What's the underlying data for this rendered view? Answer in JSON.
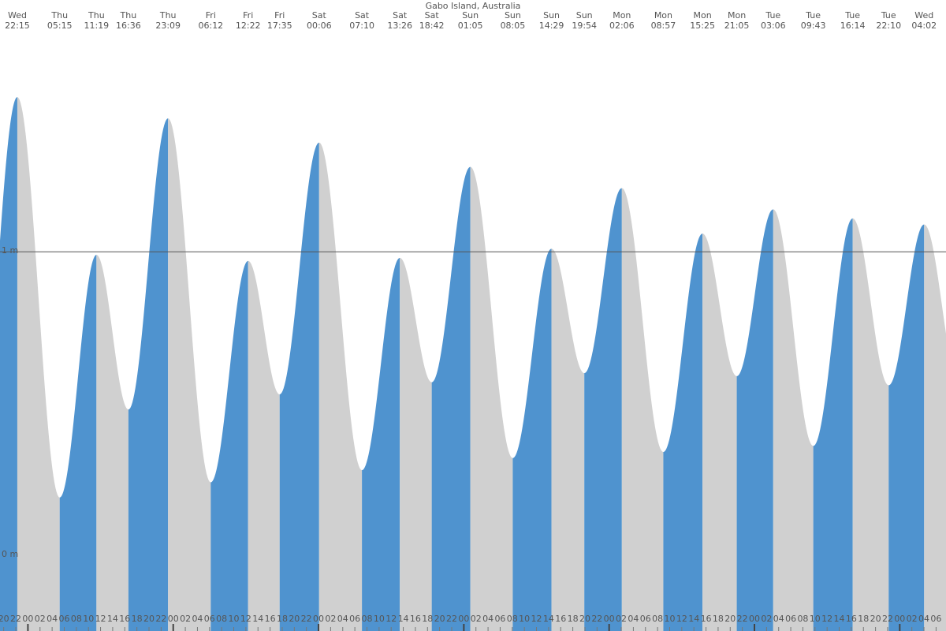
{
  "chart_data": {
    "type": "tide",
    "title": "Gabo Island, Australia",
    "day": [
      "Wed",
      "Thu",
      "Thu",
      "Thu",
      "Thu",
      "Fri",
      "Fri",
      "Fri",
      "Sat",
      "Sat",
      "Sat",
      "Sat",
      "Sun",
      "Sun",
      "Sun",
      "Sun",
      "Mon",
      "Mon",
      "Mon",
      "Mon",
      "Tue",
      "Tue",
      "Tue",
      "Tue",
      "Wed"
    ],
    "time": [
      "22:15",
      "05:15",
      "11:19",
      "16:36",
      "23:09",
      "06:12",
      "12:22",
      "17:35",
      "00:06",
      "07:10",
      "13:26",
      "18:42",
      "01:05",
      "08:05",
      "14:29",
      "19:54",
      "02:06",
      "08:57",
      "15:25",
      "21:05",
      "03:06",
      "09:43",
      "16:14",
      "22:10",
      "04:02"
    ],
    "x": [
      22.25,
      29.25,
      35.32,
      40.6,
      47.15,
      54.2,
      60.37,
      65.58,
      72.1,
      79.17,
      85.43,
      90.7,
      97.08,
      104.08,
      110.48,
      115.9,
      122.1,
      128.95,
      135.42,
      141.08,
      147.1,
      153.72,
      160.23,
      166.17,
      172.03
    ],
    "values": [
      1.51,
      0.19,
      0.99,
      0.48,
      1.44,
      0.24,
      0.97,
      0.53,
      1.36,
      0.28,
      0.98,
      0.57,
      1.28,
      0.32,
      1.01,
      0.6,
      1.21,
      0.34,
      1.06,
      0.59,
      1.14,
      0.36,
      1.11,
      0.56,
      1.09
    ],
    "rising_color": "#4f93cf",
    "falling_color": "#d0d0d0",
    "xlim": [
      19.39,
      175.64
    ],
    "ylim": [
      -0.25,
      1.83
    ],
    "yticks": [
      {
        "value": 0,
        "label": "0 m"
      },
      {
        "value": 1,
        "label": "1 m"
      }
    ],
    "grid": true,
    "xticks": [
      20,
      22,
      {
        "value": 24,
        "label": "00"
      },
      {
        "value": 26,
        "label": "02"
      },
      {
        "value": 28,
        "label": "04"
      },
      {
        "value": 30,
        "label": "06"
      },
      {
        "value": 32,
        "label": "08"
      },
      {
        "value": 34,
        "label": "10"
      },
      {
        "value": 36,
        "label": "12"
      },
      {
        "value": 38,
        "label": "14"
      },
      {
        "value": 40,
        "label": "16"
      },
      {
        "value": 42,
        "label": "18"
      },
      {
        "value": 44,
        "label": "20"
      },
      {
        "value": 46,
        "label": "22"
      },
      {
        "value": 48,
        "label": "00"
      },
      {
        "value": 50,
        "label": "02"
      },
      {
        "value": 52,
        "label": "04"
      },
      {
        "value": 54,
        "label": "06"
      },
      {
        "value": 56,
        "label": "08"
      },
      {
        "value": 58,
        "label": "10"
      },
      {
        "value": 60,
        "label": "12"
      },
      {
        "value": 62,
        "label": "14"
      },
      {
        "value": 64,
        "label": "16"
      },
      {
        "value": 66,
        "label": "18"
      },
      {
        "value": 68,
        "label": "20"
      },
      {
        "value": 70,
        "label": "22"
      },
      {
        "value": 72,
        "label": "00"
      },
      {
        "value": 74,
        "label": "02"
      },
      {
        "value": 76,
        "label": "04"
      },
      {
        "value": 78,
        "label": "06"
      },
      {
        "value": 80,
        "label": "08"
      },
      {
        "value": 82,
        "label": "10"
      },
      {
        "value": 84,
        "label": "12"
      },
      {
        "value": 86,
        "label": "14"
      },
      {
        "value": 88,
        "label": "16"
      },
      {
        "value": 90,
        "label": "18"
      },
      {
        "value": 92,
        "label": "20"
      },
      {
        "value": 94,
        "label": "22"
      },
      {
        "value": 96,
        "label": "00"
      },
      {
        "value": 98,
        "label": "02"
      },
      {
        "value": 100,
        "label": "04"
      },
      {
        "value": 102,
        "label": "06"
      },
      {
        "value": 104,
        "label": "08"
      },
      {
        "value": 106,
        "label": "10"
      },
      {
        "value": 108,
        "label": "12"
      },
      {
        "value": 110,
        "label": "14"
      },
      {
        "value": 112,
        "label": "16"
      },
      {
        "value": 114,
        "label": "18"
      },
      {
        "value": 116,
        "label": "20"
      },
      {
        "value": 118,
        "label": "22"
      },
      {
        "value": 120,
        "label": "00"
      },
      {
        "value": 122,
        "label": "02"
      },
      {
        "value": 124,
        "label": "04"
      },
      {
        "value": 126,
        "label": "06"
      },
      {
        "value": 128,
        "label": "08"
      },
      {
        "value": 130,
        "label": "10"
      },
      {
        "value": 132,
        "label": "12"
      },
      {
        "value": 134,
        "label": "14"
      },
      {
        "value": 136,
        "label": "16"
      },
      {
        "value": 138,
        "label": "18"
      },
      {
        "value": 140,
        "label": "20"
      },
      {
        "value": 142,
        "label": "22"
      },
      {
        "value": 144,
        "label": "00"
      },
      {
        "value": 146,
        "label": "02"
      },
      {
        "value": 148,
        "label": "04"
      },
      {
        "value": 150,
        "label": "06"
      },
      {
        "value": 152,
        "label": "08"
      },
      {
        "value": 154,
        "label": "10"
      },
      {
        "value": 156,
        "label": "12"
      },
      {
        "value": 158,
        "label": "14"
      },
      {
        "value": 160,
        "label": "16"
      },
      {
        "value": 162,
        "label": "18"
      },
      {
        "value": 164,
        "label": "20"
      },
      {
        "value": 166,
        "label": "22"
      },
      {
        "value": 168,
        "label": "00"
      },
      {
        "value": 170,
        "label": "02"
      },
      {
        "value": 172,
        "label": "04"
      },
      {
        "value": 174,
        "label": "06"
      }
    ]
  }
}
